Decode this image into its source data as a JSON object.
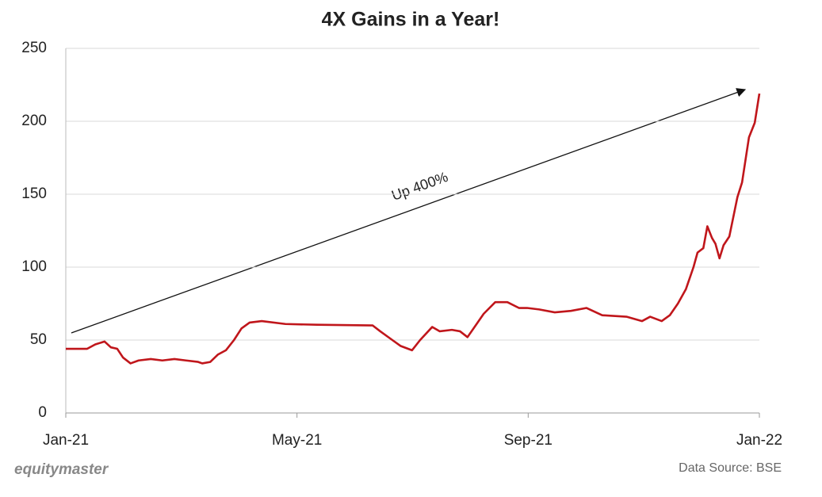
{
  "chart_data": {
    "type": "line",
    "title": "4X Gains in a Year!",
    "annotations": [
      "Up 400%"
    ],
    "brand": "equitymaster",
    "source": "Data Source: BSE",
    "x": [
      0,
      0.16,
      0.37,
      0.51,
      0.67,
      0.78,
      0.89,
      0.99,
      1.12,
      1.26,
      1.47,
      1.67,
      1.88,
      2.08,
      2.29,
      2.36,
      2.5,
      2.63,
      2.77,
      2.91,
      3.04,
      3.18,
      3.39,
      3.8,
      4.35,
      5.31,
      5.44,
      5.65,
      5.79,
      5.99,
      6.13,
      6.34,
      6.47,
      6.68,
      6.82,
      6.95,
      7.09,
      7.23,
      7.43,
      7.64,
      7.84,
      7.98,
      8.19,
      8.46,
      8.74,
      9.01,
      9.28,
      9.7,
      9.97,
      10.11,
      10.31,
      10.45,
      10.59,
      10.73,
      10.86,
      10.93,
      11.03,
      11.1,
      11.18,
      11.24,
      11.31,
      11.38,
      11.48,
      11.62,
      11.7,
      11.82,
      11.92,
      12
    ],
    "values": [
      44,
      44,
      44,
      47,
      49,
      45,
      44,
      38,
      34,
      36,
      37,
      36,
      37,
      36,
      35,
      34,
      35,
      40,
      43,
      50,
      58,
      62,
      63,
      61,
      60.5,
      60,
      56,
      50,
      46,
      43,
      50,
      59,
      56,
      57,
      56,
      52,
      60,
      68,
      76,
      76,
      72,
      72,
      71,
      69,
      70,
      72,
      67,
      66,
      63,
      66,
      63,
      67,
      75,
      85,
      100,
      110,
      113,
      128,
      120,
      116,
      106,
      115,
      121,
      148,
      158,
      189,
      199,
      219
    ],
    "color": "#c0161b",
    "xlim": [
      0,
      12
    ],
    "xticks": [
      {
        "value": 0,
        "label": "Jan-21"
      },
      {
        "value": 4,
        "label": "May-21"
      },
      {
        "value": 8,
        "label": "Sep-21"
      },
      {
        "value": 12,
        "label": "Jan-22"
      }
    ],
    "ylim": [
      0,
      250
    ],
    "yticks": [
      0,
      50,
      100,
      150,
      200,
      250
    ],
    "grid": true
  }
}
